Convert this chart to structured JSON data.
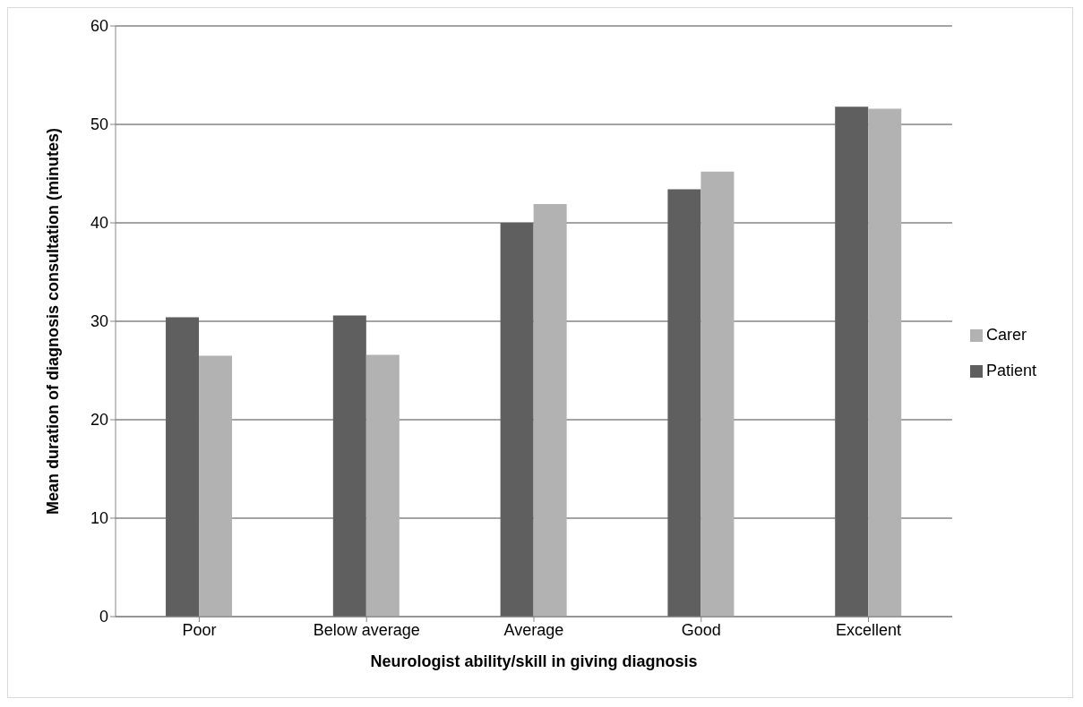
{
  "chart_data": {
    "type": "bar",
    "xlabel": "Neurologist ability/skill in giving diagnosis",
    "ylabel": "Mean duration of diagnosis consultation (minutes)",
    "categories": [
      "Poor",
      "Below average",
      "Average",
      "Good",
      "Excellent"
    ],
    "series": [
      {
        "name": "Patient",
        "color": "#5f5f5f",
        "values": [
          30.4,
          30.6,
          40.0,
          43.4,
          51.8
        ]
      },
      {
        "name": "Carer",
        "color": "#b2b2b2",
        "values": [
          26.5,
          26.6,
          41.9,
          45.2,
          51.6
        ]
      }
    ],
    "ylim": [
      0,
      60
    ],
    "yticks": [
      0,
      10,
      20,
      30,
      40,
      50,
      60
    ],
    "grid": "y",
    "legend": "right"
  }
}
